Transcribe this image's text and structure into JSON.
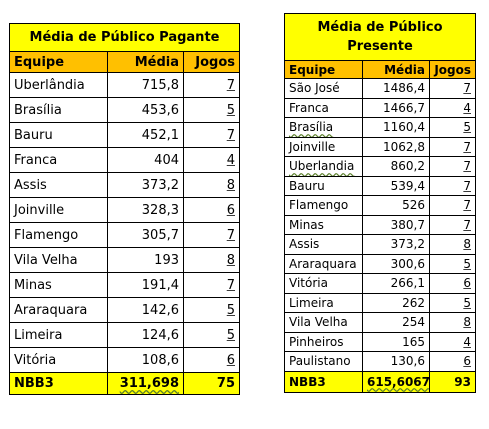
{
  "pagante": {
    "title": "Média de Público Pagante",
    "headers": [
      "Equipe",
      "Média",
      "Jogos"
    ],
    "rows": [
      [
        "Uberlândia",
        "715,8",
        "7"
      ],
      [
        "Brasília",
        "453,6",
        "5"
      ],
      [
        "Bauru",
        "452,1",
        "7"
      ],
      [
        "Franca",
        "404",
        "4"
      ],
      [
        "Assis",
        "373,2",
        "8"
      ],
      [
        "Joinville",
        "328,3",
        "6"
      ],
      [
        "Flamengo",
        "305,7",
        "7"
      ],
      [
        "Vila Velha",
        "193",
        "8"
      ],
      [
        "Minas",
        "191,4",
        "7"
      ],
      [
        "Araraquara",
        "142,6",
        "5"
      ],
      [
        "Limeira",
        "124,6",
        "5"
      ],
      [
        "Vitória",
        "108,6",
        "6"
      ]
    ],
    "footer": [
      "NBB3",
      "311,698",
      "75"
    ]
  },
  "presente": {
    "title": "Média de Público Presente",
    "headers": [
      "Equipe",
      "Média",
      "Jogos"
    ],
    "rows": [
      [
        "São José",
        "1486,4",
        "7"
      ],
      [
        "Franca",
        "1466,7",
        "4"
      ],
      [
        "Brasília",
        "1160,4",
        "5"
      ],
      [
        "Joinville",
        "1062,8",
        "7"
      ],
      [
        "Uberlandia",
        "860,2",
        "7"
      ],
      [
        "Bauru",
        "539,4",
        "7"
      ],
      [
        "Flamengo",
        "526",
        "7"
      ],
      [
        "Minas",
        "380,7",
        "7"
      ],
      [
        "Assis",
        "373,2",
        "8"
      ],
      [
        "Araraquara",
        "300,6",
        "5"
      ],
      [
        "Vitória",
        "266,1",
        "6"
      ],
      [
        "Limeira",
        "262",
        "5"
      ],
      [
        "Vila Velha",
        "254",
        "8"
      ],
      [
        "Pinheiros",
        "165",
        "4"
      ],
      [
        "Paulistano",
        "130,6",
        "6"
      ]
    ],
    "footer": [
      "NBB3",
      "615,6067",
      "93"
    ]
  }
}
